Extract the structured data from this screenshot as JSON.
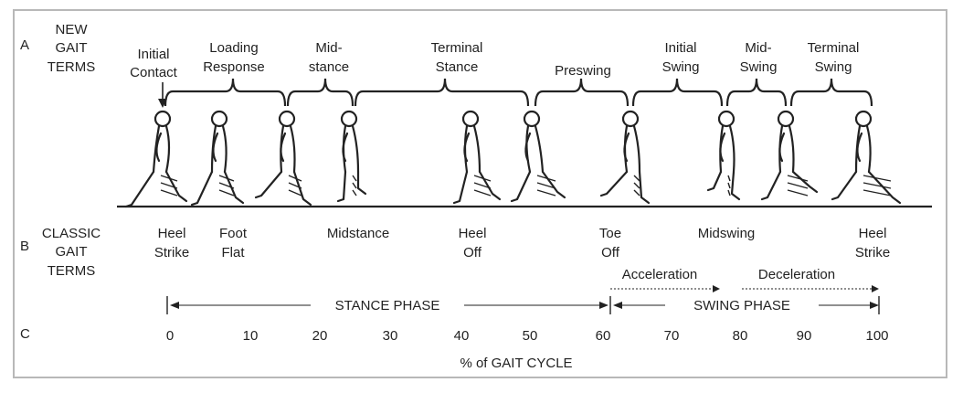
{
  "rows": {
    "a": "A",
    "b": "B",
    "c": "C"
  },
  "new_terms_heading": [
    "NEW",
    "GAIT",
    "TERMS"
  ],
  "classic_terms_heading": [
    "CLASSIC",
    "GAIT",
    "TERMS"
  ],
  "new_terms": [
    {
      "lines": [
        "Initial",
        "Contact"
      ]
    },
    {
      "lines": [
        "Loading",
        "Response"
      ]
    },
    {
      "lines": [
        "Mid-",
        "stance"
      ]
    },
    {
      "lines": [
        "Terminal",
        "Stance"
      ]
    },
    {
      "lines": [
        "Preswing"
      ]
    },
    {
      "lines": [
        "Initial",
        "Swing"
      ]
    },
    {
      "lines": [
        "Mid-",
        "Swing"
      ]
    },
    {
      "lines": [
        "Terminal",
        "Swing"
      ]
    }
  ],
  "classic_terms": [
    {
      "lines": [
        "Heel",
        "Strike"
      ],
      "pct": 0
    },
    {
      "lines": [
        "Foot",
        "Flat"
      ],
      "pct": 8
    },
    {
      "lines": [
        "Midstance"
      ],
      "pct": 25
    },
    {
      "lines": [
        "Heel",
        "Off"
      ],
      "pct": 42
    },
    {
      "lines": [
        "Toe",
        "Off"
      ],
      "pct": 60
    },
    {
      "lines": [
        "Midswing"
      ],
      "pct": 75
    },
    {
      "lines": [
        "Heel",
        "Strike"
      ],
      "pct": 100
    }
  ],
  "stance_phase": {
    "label": "STANCE PHASE",
    "start": 0,
    "end": 62
  },
  "swing_phase": {
    "label": "SWING PHASE",
    "start": 62,
    "end": 100
  },
  "acceleration": {
    "label": "Acceleration",
    "start": 62,
    "end": 78
  },
  "deceleration": {
    "label": "Deceleration",
    "start": 80,
    "end": 100
  },
  "scale_ticks": [
    "0",
    "10",
    "20",
    "30",
    "40",
    "50",
    "60",
    "70",
    "80",
    "90",
    "100"
  ],
  "axis_title": "% of GAIT CYCLE"
}
